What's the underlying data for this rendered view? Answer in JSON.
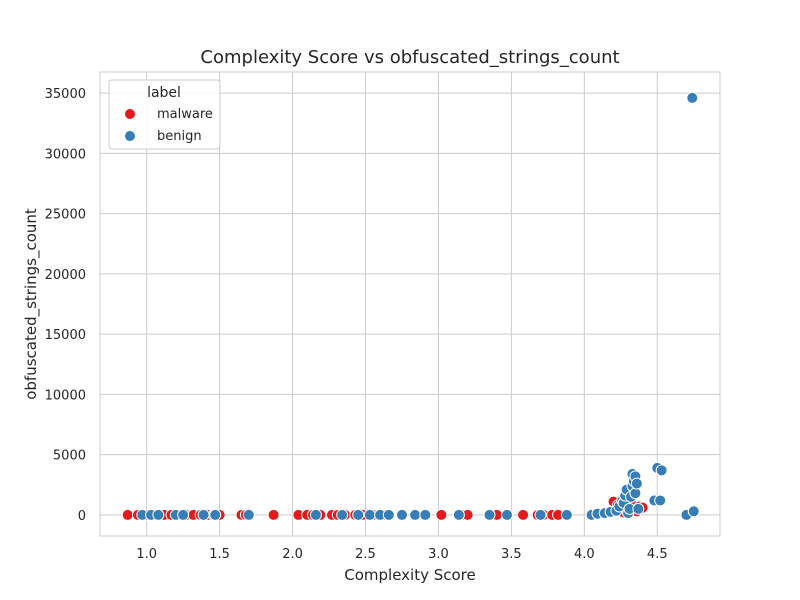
{
  "chart_data": {
    "type": "scatter",
    "title": "Complexity Score vs obfuscated_strings_count",
    "xlabel": "Complexity Score",
    "ylabel": "obfuscated_strings_count",
    "xlim": [
      0.68,
      4.93
    ],
    "ylim": [
      -1750,
      36750
    ],
    "xticks": [
      1.0,
      1.5,
      2.0,
      2.5,
      3.0,
      3.5,
      4.0,
      4.5
    ],
    "xtick_labels": [
      "1.0",
      "1.5",
      "2.0",
      "2.5",
      "3.0",
      "3.5",
      "4.0",
      "4.5"
    ],
    "yticks": [
      0,
      5000,
      10000,
      15000,
      20000,
      25000,
      30000,
      35000
    ],
    "ytick_labels": [
      "0",
      "5000",
      "10000",
      "15000",
      "20000",
      "25000",
      "30000",
      "35000"
    ],
    "grid": true,
    "legend": {
      "title": "label",
      "placement": "top-left"
    },
    "series": [
      {
        "name": "malware",
        "color": "#e41a1c",
        "points": [
          [
            0.87,
            0
          ],
          [
            0.94,
            0
          ],
          [
            1.0,
            0
          ],
          [
            1.05,
            0
          ],
          [
            1.12,
            0
          ],
          [
            1.17,
            0
          ],
          [
            1.22,
            0
          ],
          [
            1.27,
            0
          ],
          [
            1.32,
            0
          ],
          [
            1.37,
            0
          ],
          [
            1.42,
            0
          ],
          [
            1.46,
            0
          ],
          [
            1.5,
            0
          ],
          [
            1.65,
            0
          ],
          [
            1.68,
            0
          ],
          [
            1.87,
            0
          ],
          [
            2.04,
            0
          ],
          [
            2.1,
            0
          ],
          [
            2.14,
            0
          ],
          [
            2.19,
            0
          ],
          [
            2.27,
            0
          ],
          [
            2.31,
            0
          ],
          [
            2.36,
            0
          ],
          [
            2.43,
            0
          ],
          [
            2.48,
            0
          ],
          [
            2.55,
            0
          ],
          [
            2.62,
            0
          ],
          [
            3.02,
            0
          ],
          [
            3.18,
            0
          ],
          [
            3.2,
            0
          ],
          [
            3.38,
            0
          ],
          [
            3.4,
            0
          ],
          [
            3.58,
            0
          ],
          [
            3.68,
            0
          ],
          [
            3.72,
            0
          ],
          [
            3.78,
            0
          ],
          [
            3.82,
            0
          ],
          [
            4.2,
            1100
          ],
          [
            4.23,
            800
          ],
          [
            4.25,
            400
          ],
          [
            4.27,
            200
          ],
          [
            4.3,
            600
          ],
          [
            4.32,
            1000
          ],
          [
            4.36,
            300
          ],
          [
            4.38,
            700
          ],
          [
            4.4,
            600
          ]
        ]
      },
      {
        "name": "benign",
        "color": "#377eb8",
        "points": [
          [
            0.97,
            0
          ],
          [
            1.03,
            0
          ],
          [
            1.08,
            0
          ],
          [
            1.2,
            0
          ],
          [
            1.25,
            0
          ],
          [
            1.39,
            0
          ],
          [
            1.47,
            0
          ],
          [
            1.7,
            0
          ],
          [
            2.16,
            0
          ],
          [
            2.34,
            0
          ],
          [
            2.45,
            0
          ],
          [
            2.53,
            0
          ],
          [
            2.6,
            0
          ],
          [
            2.66,
            0
          ],
          [
            2.75,
            0
          ],
          [
            2.84,
            0
          ],
          [
            2.91,
            0
          ],
          [
            3.14,
            0
          ],
          [
            3.35,
            0
          ],
          [
            3.47,
            0
          ],
          [
            3.7,
            0
          ],
          [
            3.88,
            0
          ],
          [
            4.05,
            0
          ],
          [
            4.09,
            100
          ],
          [
            4.14,
            150
          ],
          [
            4.18,
            250
          ],
          [
            4.22,
            350
          ],
          [
            4.24,
            700
          ],
          [
            4.26,
            1200
          ],
          [
            4.27,
            1000
          ],
          [
            4.28,
            1600
          ],
          [
            4.29,
            2100
          ],
          [
            4.3,
            150
          ],
          [
            4.31,
            500
          ],
          [
            4.32,
            1500
          ],
          [
            4.33,
            2400
          ],
          [
            4.33,
            3400
          ],
          [
            4.34,
            2800
          ],
          [
            4.35,
            3200
          ],
          [
            4.35,
            1800
          ],
          [
            4.36,
            2600
          ],
          [
            4.37,
            500
          ],
          [
            4.48,
            1200
          ],
          [
            4.5,
            3900
          ],
          [
            4.52,
            1200
          ],
          [
            4.53,
            3700
          ],
          [
            4.7,
            0
          ],
          [
            4.74,
            34600
          ],
          [
            4.75,
            300
          ]
        ]
      }
    ]
  }
}
